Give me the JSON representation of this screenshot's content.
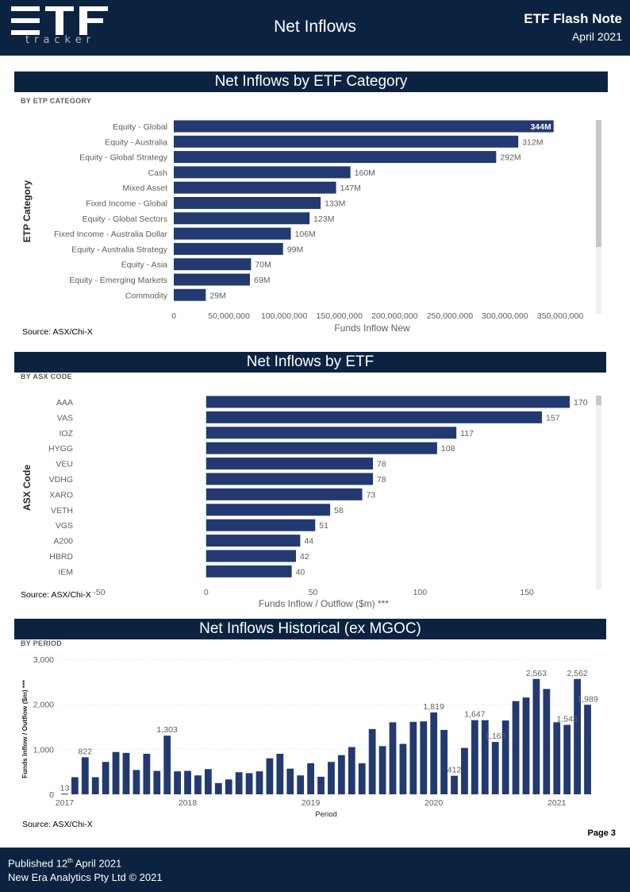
{
  "header": {
    "logo_text": "tracker",
    "title": "Net Inflows",
    "note": "ETF Flash Note",
    "date": "April 2021"
  },
  "sections": {
    "category": {
      "banner": "Net Inflows by ETF Category",
      "sub_label": "BY ETP CATEGORY",
      "source": "Source: ASX/Chi-X"
    },
    "etf": {
      "banner": "Net Inflows by ETF",
      "sub_label": "BY ASX CODE",
      "source": "Source: ASX/Chi-X"
    },
    "historical": {
      "banner": "Net Inflows Historical (ex MGOC)",
      "sub_label": "BY PERIOD",
      "source": "Source: ASX/Chi-X"
    }
  },
  "page": {
    "label": "Page 3"
  },
  "footer": {
    "published_prefix": "Published 12",
    "published_sup": "th",
    "published_suffix": " April 2021",
    "company": "New Era Analytics Pty Ltd © 2021"
  },
  "colors": {
    "navy": "#0b2340",
    "bar": "#223a70"
  },
  "chart_data": [
    {
      "type": "bar",
      "orientation": "horizontal",
      "categories": [
        "Equity - Global",
        "Equity - Australia",
        "Equity - Global Strategy",
        "Cash",
        "Mixed Asset",
        "Fixed Income - Global",
        "Equity - Global Sectors",
        "Fixed Income - Australia Dollar",
        "Equity - Australia Strategy",
        "Equity - Asia",
        "Equity - Emerging Markets",
        "Commodity"
      ],
      "values": [
        344000000,
        312000000,
        292000000,
        160000000,
        147000000,
        133000000,
        123000000,
        106000000,
        99000000,
        70000000,
        69000000,
        29000000
      ],
      "data_labels": [
        "344M",
        "312M",
        "292M",
        "160M",
        "147M",
        "133M",
        "123M",
        "106M",
        "99M",
        "70M",
        "69M",
        "29M"
      ],
      "xlabel": "Funds Inflow New",
      "ylabel": "ETP Category",
      "xlim": [
        0,
        360000000
      ],
      "xticks": [
        0,
        50000000,
        100000000,
        150000000,
        200000000,
        250000000,
        300000000,
        350000000
      ],
      "xtick_labels": [
        "0",
        "50,000,000",
        "100,000,000",
        "150,000,000",
        "200,000,000",
        "250,000,000",
        "300,000,000",
        "350,000,000"
      ],
      "grid": false
    },
    {
      "type": "bar",
      "orientation": "horizontal",
      "categories": [
        "AAA",
        "VAS",
        "IOZ",
        "HYGG",
        "VEU",
        "VDHG",
        "XARO",
        "VETH",
        "VGS",
        "A200",
        "HBRD",
        "IEM"
      ],
      "values": [
        170,
        157,
        117,
        108,
        78,
        78,
        73,
        58,
        51,
        44,
        42,
        40
      ],
      "data_labels": [
        "170",
        "157",
        "117",
        "108",
        "78",
        "78",
        "73",
        "58",
        "51",
        "44",
        "42",
        "40"
      ],
      "xlabel": "Funds Inflow / Outflow ($m) ***",
      "ylabel": "ASX Code",
      "xlim": [
        -50,
        180
      ],
      "xticks": [
        -50,
        0,
        50,
        100,
        150
      ],
      "xtick_labels": [
        "-50",
        "0",
        "50",
        "100",
        "150"
      ],
      "grid": false
    },
    {
      "type": "bar",
      "orientation": "vertical",
      "values": [
        13,
        380,
        822,
        380,
        720,
        940,
        920,
        540,
        900,
        520,
        1303,
        510,
        520,
        420,
        560,
        250,
        330,
        490,
        470,
        510,
        800,
        900,
        570,
        420,
        690,
        390,
        720,
        870,
        1050,
        690,
        1450,
        1070,
        1600,
        1120,
        1610,
        1620,
        1819,
        1430,
        412,
        1030,
        1647,
        1647,
        1163,
        1640,
        2070,
        2150,
        2563,
        2340,
        1600,
        1543,
        2562,
        1989
      ],
      "point_labels": [
        {
          "index": 0,
          "label": "13"
        },
        {
          "index": 2,
          "label": "822"
        },
        {
          "index": 10,
          "label": "1,303"
        },
        {
          "index": 36,
          "label": "1,819"
        },
        {
          "index": 38,
          "label": "412"
        },
        {
          "index": 40,
          "label": "1,647"
        },
        {
          "index": 42,
          "label": "1,163"
        },
        {
          "index": 46,
          "label": "2,563"
        },
        {
          "index": 49,
          "label": "1,543"
        },
        {
          "index": 50,
          "label": "2,562"
        },
        {
          "index": 51,
          "label": "1,989"
        }
      ],
      "x_ticks": [
        {
          "index": 0,
          "label": "2017"
        },
        {
          "index": 12,
          "label": "2018"
        },
        {
          "index": 24,
          "label": "2019"
        },
        {
          "index": 36,
          "label": "2020"
        },
        {
          "index": 48,
          "label": "2021"
        }
      ],
      "xlabel": "Period",
      "ylabel": "Funds Inflow / Outflow ($m) ***",
      "ylim": [
        0,
        3000
      ],
      "yticks": [
        0,
        1000,
        2000,
        3000
      ],
      "ytick_labels": [
        "0",
        "1,000",
        "2,000",
        "3,000"
      ],
      "grid": true
    }
  ]
}
